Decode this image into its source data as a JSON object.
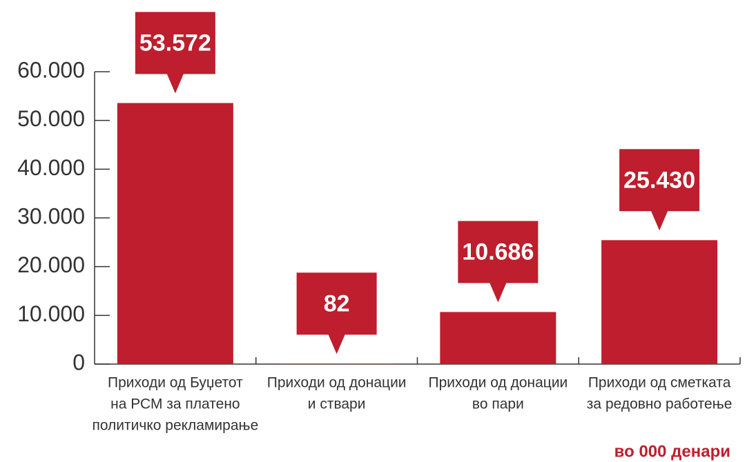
{
  "chart_data": {
    "type": "bar",
    "categories": [
      [
        "Приходи од Буџетот",
        "на РСМ за платено",
        "политичко рекламирање"
      ],
      [
        "Приходи од донации",
        "и ствари"
      ],
      [
        "Приходи од донации",
        "во пари"
      ],
      [
        "Приходи од сметката",
        "за редовно работење"
      ]
    ],
    "values": [
      53572,
      82,
      10686,
      25430
    ],
    "value_labels": [
      "53.572",
      "82",
      "10.686",
      "25.430"
    ],
    "color": "#be1e2d",
    "ylim": [
      0,
      60000
    ],
    "yticks": [
      0,
      {
        "value": 10000,
        "label": "10.000"
      },
      {
        "value": 20000,
        "label": "20.000"
      },
      {
        "value": 30000,
        "label": "30.000"
      },
      {
        "value": 40000,
        "label": "40.000"
      },
      {
        "value": 50000,
        "label": "50.000"
      },
      {
        "value": 60000,
        "label": "60.000"
      }
    ],
    "note": "во 000 денари"
  }
}
